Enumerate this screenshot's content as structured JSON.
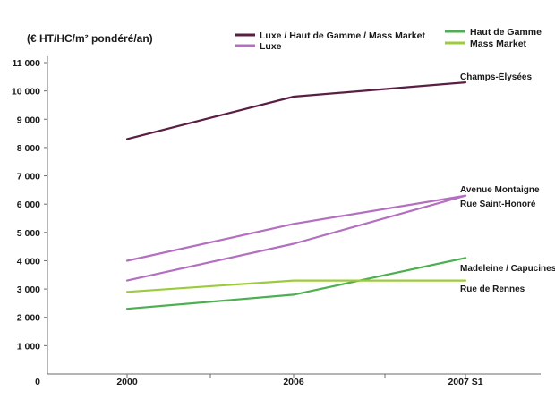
{
  "chart_data": {
    "type": "line",
    "y_unit_label": "(€ HT/HC/m² pondéré/an)",
    "categories": [
      "2000",
      "2006",
      "2007 S1"
    ],
    "y_tick_labels": [
      "0",
      "1 000",
      "2 000",
      "3 000",
      "4 000",
      "5 000",
      "6 000",
      "7 000",
      "8 000",
      "9 000",
      "10 000",
      "11 000"
    ],
    "ylim": [
      0,
      11000
    ],
    "grid": false,
    "legend_position": "top-right",
    "legend": [
      {
        "label": "Luxe / Haut de Gamme / Mass Market",
        "color": "#5a1e44"
      },
      {
        "label": "Luxe",
        "color": "#b36fc0"
      },
      {
        "label": "Haut de Gamme",
        "color": "#4caf50"
      },
      {
        "label": "Mass Market",
        "color": "#9ccc3c"
      }
    ],
    "series": [
      {
        "name": "Champs-Élysées",
        "category": "Luxe / Haut de Gamme / Mass Market",
        "color": "#5a1e44",
        "values": [
          8300,
          9800,
          10300
        ]
      },
      {
        "name": "Avenue Montaigne",
        "category": "Luxe",
        "color": "#b36fc0",
        "values": [
          4000,
          5300,
          6300
        ]
      },
      {
        "name": "Rue Saint-Honoré",
        "category": "Luxe",
        "color": "#b36fc0",
        "values": [
          3300,
          4600,
          6300
        ]
      },
      {
        "name": "Madeleine / Capucines",
        "category": "Haut de Gamme",
        "color": "#4caf50",
        "values": [
          2300,
          2800,
          4100
        ]
      },
      {
        "name": "Rue de Rennes",
        "category": "Mass Market",
        "color": "#9ccc3c",
        "values": [
          2900,
          3300,
          3300
        ]
      }
    ]
  }
}
